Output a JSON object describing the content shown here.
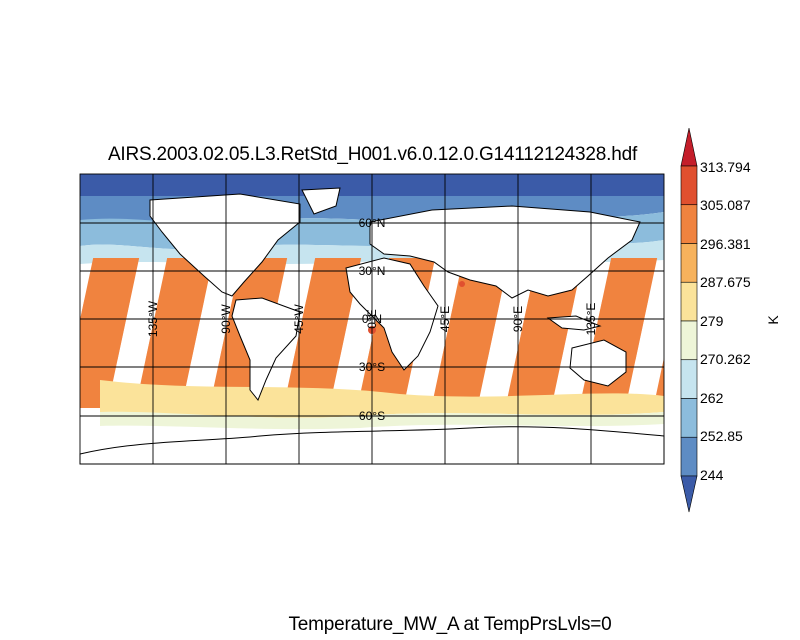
{
  "title": "AIRS.2003.02.05.L3.RetStd_H001.v6.0.12.0.G14112124328.hdf",
  "caption": "Temperature_MW_A at TempPrsLvls=0",
  "colorbar": {
    "unit": "K",
    "tick_labels": [
      "313.794",
      "305.087",
      "296.381",
      "287.675",
      "279",
      "270.262",
      "262",
      "252.85",
      "244"
    ],
    "colors": [
      "#c41e2a",
      "#e0502f",
      "#f0833f",
      "#f7b25c",
      "#fbe39a",
      "#eef5d8",
      "#c6e4ef",
      "#8cbcdc",
      "#5e8cc4",
      "#3b5ba8"
    ]
  },
  "map": {
    "projection": "equirectangular",
    "lat_labels": [
      "60°N",
      "30°N",
      "0°N",
      "30°S",
      "60°S"
    ],
    "lon_labels": [
      "135°W",
      "90°W",
      "45°W",
      "0°E",
      "45°E",
      "90°E",
      "135°E"
    ],
    "graticule_lats": [
      60,
      30,
      0,
      -30,
      -60
    ],
    "graticule_lons": [
      -135,
      -90,
      -45,
      0,
      45,
      90,
      135
    ]
  }
}
